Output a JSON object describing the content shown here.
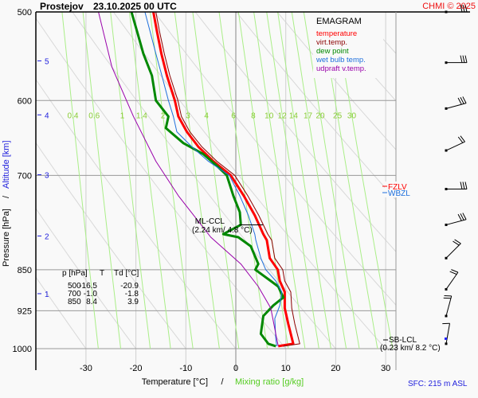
{
  "header": {
    "station": "Prostejov",
    "datetime": "23.10.2025 00 UTC",
    "copyright": "CHMI © 2025"
  },
  "footer": {
    "sfc": "SFC: 215 m ASL"
  },
  "chart_data": {
    "type": "line",
    "title": "EMAGRAM",
    "xlabel": "Temperature [°C]",
    "xlabel_sep": "/",
    "xlabel2": "Mixing ratio [g/kg]",
    "ylabel": "Pressure [hPa]",
    "ylabel_sep": "/",
    "ylabel2": "Altitude [km]",
    "xlim": [
      -37,
      33
    ],
    "ylim": [
      1000,
      500
    ],
    "x_ticks": [
      -30,
      -20,
      -10,
      0,
      10,
      20,
      30
    ],
    "x_tick_labels": [
      "-30",
      "-20",
      "-10",
      "0",
      "10",
      "20",
      "30"
    ],
    "p_ticks": [
      500,
      600,
      700,
      850,
      925,
      1000
    ],
    "p_tick_labels": [
      "500",
      "600",
      "700",
      "850",
      "925",
      "1000"
    ],
    "altitude_ticks": [
      {
        "km": 5,
        "label": "5",
        "p": 553
      },
      {
        "km": 4,
        "label": "4",
        "p": 618
      },
      {
        "km": 3,
        "label": "3",
        "p": 699
      },
      {
        "km": 2,
        "label": "2",
        "p": 793
      },
      {
        "km": 1,
        "label": "1",
        "p": 893
      }
    ],
    "mixing_ratio_labels": [
      "0.4",
      "0.6",
      "1",
      "1.4",
      "2",
      "3",
      "4",
      "6",
      "8",
      "10",
      "12",
      "14",
      "17",
      "20",
      "25",
      "30"
    ],
    "mixing_ratio_label_p": 618,
    "legend": {
      "position": "top-right",
      "title": "EMAGRAM",
      "entries": [
        {
          "label": "temperature",
          "color": "#ff0000"
        },
        {
          "label": "virt.temp.",
          "color": "#8b0000"
        },
        {
          "label": "dew point",
          "color": "#008800"
        },
        {
          "label": "wet bulb temp.",
          "color": "#1e6fdc"
        },
        {
          "label": "udpraft v.temp.",
          "color": "#9900aa"
        }
      ]
    },
    "series": [
      {
        "name": "temperature",
        "color": "#ff0000",
        "points": [
          [
            -16.5,
            500
          ],
          [
            -15.8,
            520
          ],
          [
            -14.9,
            545
          ],
          [
            -13.8,
            570
          ],
          [
            -12.2,
            600
          ],
          [
            -11.5,
            620
          ],
          [
            -9.8,
            640
          ],
          [
            -7.5,
            660
          ],
          [
            -4.5,
            680
          ],
          [
            -1.0,
            700
          ],
          [
            1.6,
            730
          ],
          [
            3.8,
            760
          ],
          [
            5.5,
            790
          ],
          [
            6.2,
            800
          ],
          [
            6.8,
            830
          ],
          [
            8.4,
            850
          ],
          [
            8.8,
            870
          ],
          [
            9.8,
            890
          ],
          [
            9.8,
            920
          ],
          [
            10.5,
            950
          ],
          [
            11.5,
            990
          ],
          [
            8.5,
            995
          ]
        ]
      },
      {
        "name": "virt.temp.",
        "color": "#8b0000",
        "points": [
          [
            -16.0,
            500
          ],
          [
            -15.3,
            520
          ],
          [
            -14.3,
            545
          ],
          [
            -13.2,
            570
          ],
          [
            -11.6,
            600
          ],
          [
            -10.9,
            620
          ],
          [
            -9.2,
            640
          ],
          [
            -6.8,
            660
          ],
          [
            -3.8,
            680
          ],
          [
            -0.2,
            700
          ],
          [
            2.4,
            730
          ],
          [
            4.6,
            760
          ],
          [
            6.4,
            790
          ],
          [
            7.2,
            800
          ],
          [
            7.8,
            830
          ],
          [
            9.4,
            850
          ],
          [
            9.8,
            870
          ],
          [
            11.0,
            890
          ],
          [
            11.2,
            920
          ],
          [
            11.8,
            950
          ],
          [
            12.8,
            990
          ],
          [
            9.5,
            995
          ]
        ]
      },
      {
        "name": "dew point",
        "color": "#008800",
        "points": [
          [
            -20.9,
            500
          ],
          [
            -19.8,
            520
          ],
          [
            -18.5,
            545
          ],
          [
            -16.8,
            570
          ],
          [
            -16.0,
            600
          ],
          [
            -13.5,
            620
          ],
          [
            -14.0,
            635
          ],
          [
            -10.5,
            655
          ],
          [
            -6.5,
            670
          ],
          [
            -4.0,
            685
          ],
          [
            -1.8,
            700
          ],
          [
            -0.5,
            730
          ],
          [
            0.8,
            755
          ],
          [
            1.0,
            775
          ],
          [
            -2.5,
            790
          ],
          [
            0.5,
            795
          ],
          [
            3.0,
            810
          ],
          [
            4.5,
            840
          ],
          [
            3.9,
            850
          ],
          [
            7.0,
            870
          ],
          [
            8.5,
            880
          ],
          [
            9.5,
            900
          ],
          [
            7.5,
            915
          ],
          [
            5.5,
            935
          ],
          [
            5.0,
            970
          ],
          [
            6.5,
            990
          ],
          [
            8.0,
            995
          ]
        ]
      },
      {
        "name": "wet bulb temp.",
        "color": "#1e6fdc",
        "points": [
          [
            -18.2,
            500
          ],
          [
            -17.2,
            520
          ],
          [
            -16.0,
            545
          ],
          [
            -14.8,
            570
          ],
          [
            -13.5,
            600
          ],
          [
            -12.5,
            620
          ],
          [
            -11.8,
            640
          ],
          [
            -8.8,
            660
          ],
          [
            -5.5,
            680
          ],
          [
            -1.3,
            700
          ],
          [
            0.8,
            730
          ],
          [
            2.5,
            760
          ],
          [
            3.8,
            790
          ],
          [
            4.0,
            800
          ],
          [
            5.0,
            830
          ],
          [
            6.0,
            850
          ],
          [
            8.0,
            870
          ],
          [
            9.2,
            890
          ],
          [
            8.8,
            915
          ],
          [
            7.8,
            940
          ],
          [
            8.0,
            980
          ],
          [
            8.2,
            995
          ]
        ]
      },
      {
        "name": "udpraft v.temp.",
        "color": "#9900aa",
        "points": [
          [
            -27.5,
            500
          ],
          [
            -24.8,
            560
          ],
          [
            -20.5,
            620
          ],
          [
            -16.0,
            680
          ],
          [
            -11.5,
            730
          ],
          [
            -5.0,
            795
          ],
          [
            1.0,
            840
          ],
          [
            4.5,
            880
          ],
          [
            7.0,
            920
          ],
          [
            8.2,
            980
          ],
          [
            8.5,
            995
          ]
        ]
      }
    ],
    "annotations": [
      {
        "text": "ML-CCL",
        "text2": "(2.24 km/ 4.8 °C)",
        "p": 790,
        "temp": 4.8
      },
      {
        "text": "FZLV",
        "color": "#ff0000",
        "p": 705
      },
      {
        "text": "WBZL",
        "color": "#1e6fdc",
        "p": 712
      },
      {
        "text": "SB-LCL",
        "text2": "(0.23 km/ 8.2 °C)",
        "p": 980,
        "temp": 8.2
      }
    ],
    "table": {
      "headers": [
        "p [hPa]",
        "T",
        "Td [°C]"
      ],
      "rows": [
        [
          "500",
          "-16.5",
          "-20.9"
        ],
        [
          "700",
          "-1.0",
          "-1.8"
        ],
        [
          "850",
          "8.4",
          "3.9"
        ]
      ]
    },
    "wind_barbs": [
      {
        "p": 500,
        "dir_deg": 270,
        "speed_kt": 30
      },
      {
        "p": 555,
        "dir_deg": 270,
        "speed_kt": 30
      },
      {
        "p": 610,
        "dir_deg": 255,
        "speed_kt": 25
      },
      {
        "p": 665,
        "dir_deg": 245,
        "speed_kt": 20
      },
      {
        "p": 720,
        "dir_deg": 270,
        "speed_kt": 25
      },
      {
        "p": 775,
        "dir_deg": 255,
        "speed_kt": 25
      },
      {
        "p": 830,
        "dir_deg": 225,
        "speed_kt": 20
      },
      {
        "p": 885,
        "dir_deg": 215,
        "speed_kt": 20
      },
      {
        "p": 935,
        "dir_deg": 195,
        "speed_kt": 15
      },
      {
        "p": 990,
        "dir_deg": 190,
        "speed_kt": 10
      }
    ]
  }
}
